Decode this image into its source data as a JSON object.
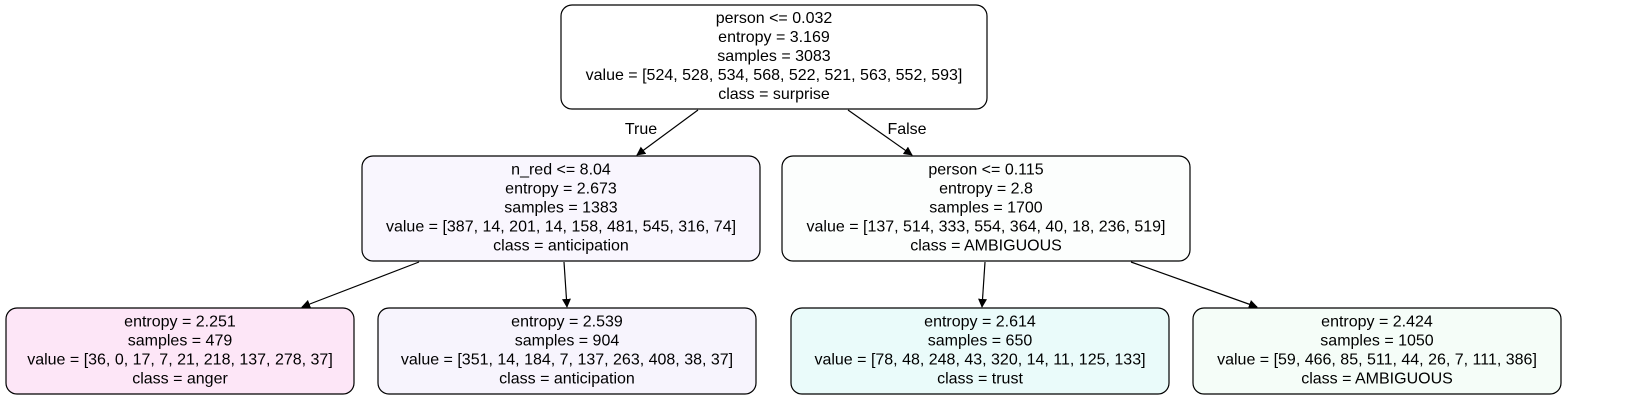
{
  "tree": {
    "nodes": [
      {
        "id": "root",
        "fill": "#ffffff",
        "lines": [
          "person <= 0.032",
          "entropy = 3.169",
          "samples = 3083",
          "value = [524, 528, 534, 568, 522, 521, 563, 552, 593]",
          "class = surprise"
        ]
      },
      {
        "id": "left",
        "fill": "#f9f6fe",
        "lines": [
          "n_red <= 8.04",
          "entropy = 2.673",
          "samples = 1383",
          "value = [387, 14, 201, 14, 158, 481, 545, 316, 74]",
          "class = anticipation"
        ]
      },
      {
        "id": "right",
        "fill": "#fcfefd",
        "lines": [
          "person <= 0.115",
          "entropy = 2.8",
          "samples = 1700",
          "value = [137, 514, 333, 554, 364, 40, 18, 236, 519]",
          "class = AMBIGUOUS"
        ]
      },
      {
        "id": "leaf1",
        "fill": "#fde6f7",
        "lines": [
          "entropy = 2.251",
          "samples = 479",
          "value = [36, 0, 17, 7, 21, 218, 137, 278, 37]",
          "class = anger"
        ]
      },
      {
        "id": "leaf2",
        "fill": "#f7f4fd",
        "lines": [
          "entropy = 2.539",
          "samples = 904",
          "value = [351, 14, 184, 7, 137, 263, 408, 38, 37]",
          "class = anticipation"
        ]
      },
      {
        "id": "leaf3",
        "fill": "#eafbfa",
        "lines": [
          "entropy = 2.614",
          "samples = 650",
          "value = [78, 48, 248, 43, 320, 14, 11, 125, 133]",
          "class = trust"
        ]
      },
      {
        "id": "leaf4",
        "fill": "#f5fdf8",
        "lines": [
          "entropy = 2.424",
          "samples = 1050",
          "value = [59, 466, 85, 511, 44, 26, 7, 111, 386]",
          "class = AMBIGUOUS"
        ]
      }
    ],
    "edges": [
      {
        "from": "root",
        "to": "left",
        "label": "True"
      },
      {
        "from": "root",
        "to": "right",
        "label": "False"
      },
      {
        "from": "left",
        "to": "leaf1",
        "label": ""
      },
      {
        "from": "left",
        "to": "leaf2",
        "label": ""
      },
      {
        "from": "right",
        "to": "leaf3",
        "label": ""
      },
      {
        "from": "right",
        "to": "leaf4",
        "label": ""
      }
    ]
  }
}
